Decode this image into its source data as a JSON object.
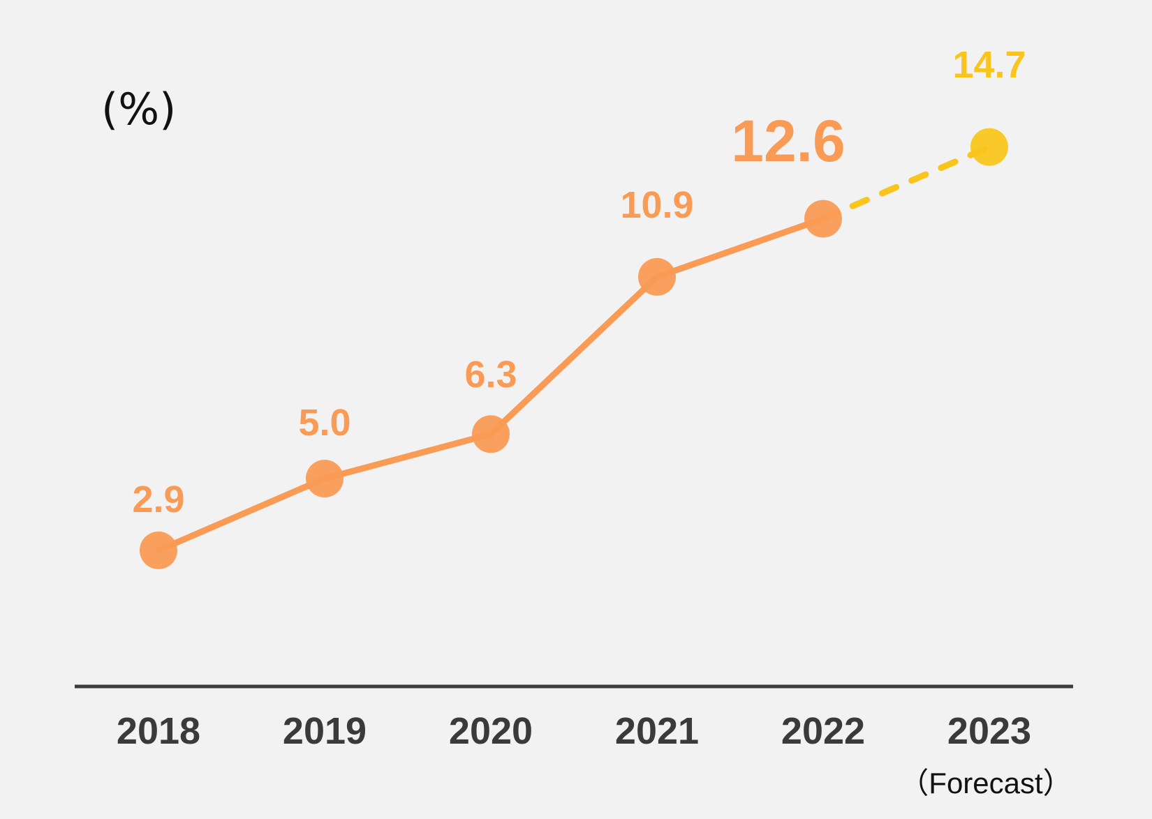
{
  "chart_data": {
    "type": "line",
    "unit_label": "(%)",
    "categories": [
      "2018",
      "2019",
      "2020",
      "2021",
      "2022",
      "2023"
    ],
    "forecast_note": "（Forecast）",
    "series": [
      {
        "values": [
          2.9,
          5.0,
          6.3,
          10.9,
          12.6,
          14.7
        ],
        "labels": [
          "2.9",
          "5.0",
          "6.3",
          "10.9",
          "12.6",
          "14.7"
        ],
        "forecast_from_index": 4
      }
    ],
    "highlight_index": 4,
    "colors": {
      "actual": "#fa9b55",
      "forecast": "#f9c51d",
      "axis": "#3a3a3a",
      "background": "#f2f2f2"
    },
    "grid": false,
    "legend": "none"
  }
}
